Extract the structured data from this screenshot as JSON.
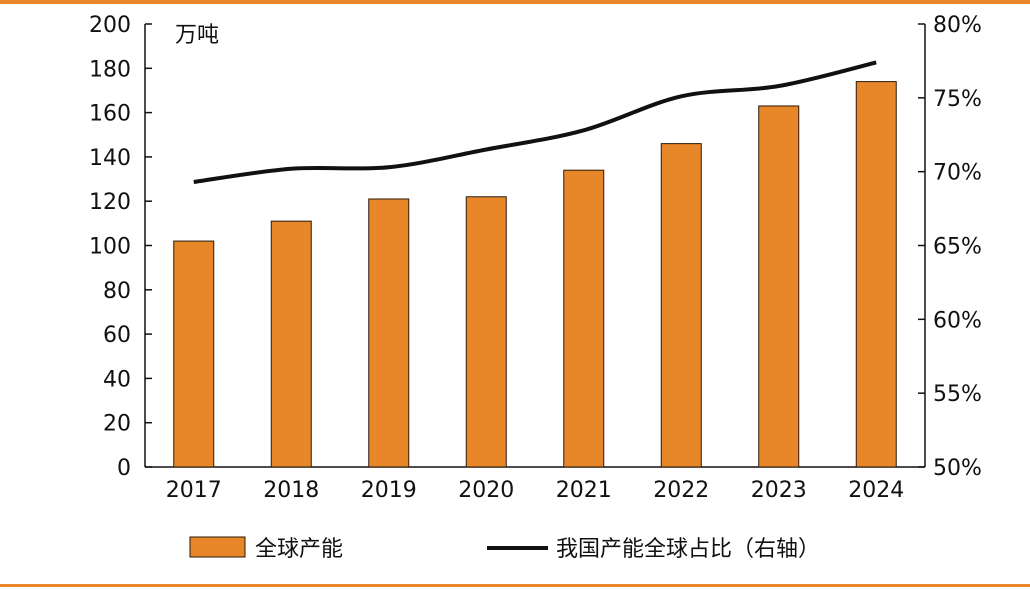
{
  "chart_data": {
    "type": "bar",
    "categories": [
      "2017",
      "2018",
      "2019",
      "2020",
      "2021",
      "2022",
      "2023",
      "2024"
    ],
    "series": [
      {
        "name": "全球产能",
        "type": "bar",
        "axis": "left",
        "color": "#e8862a",
        "values": [
          102,
          111,
          121,
          122,
          134,
          146,
          163,
          174
        ]
      },
      {
        "name": "我国产能全球占比（右轴）",
        "type": "line",
        "axis": "right",
        "color": "#111111",
        "values": [
          0.693,
          0.702,
          0.703,
          0.715,
          0.728,
          0.751,
          0.758,
          0.774
        ]
      }
    ],
    "y_left": {
      "unit": "万吨",
      "min": 0,
      "max": 200,
      "ticks": [
        "0",
        "20",
        "40",
        "60",
        "80",
        "100",
        "120",
        "140",
        "160",
        "180",
        "200"
      ]
    },
    "y_right": {
      "min": 0.5,
      "max": 0.8,
      "ticks": [
        "50%",
        "55%",
        "60%",
        "65%",
        "70%",
        "75%",
        "80%"
      ]
    },
    "legend_position": "bottom",
    "grid": false
  }
}
